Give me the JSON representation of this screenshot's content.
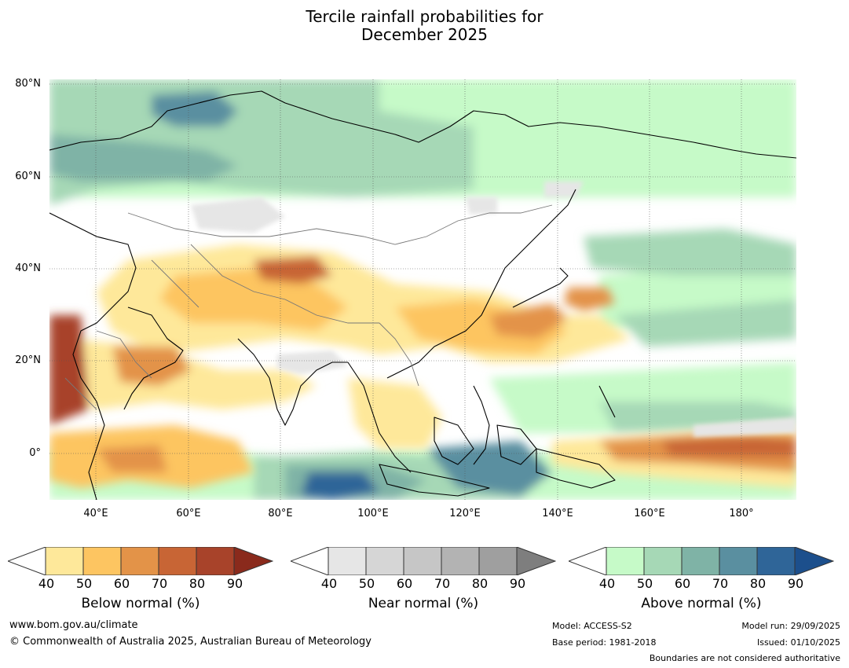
{
  "title": {
    "line1": "Tercile rainfall probabilities for",
    "line2": "December 2025"
  },
  "map": {
    "lat_labels": [
      "80°N",
      "60°N",
      "40°N",
      "20°N",
      "0°"
    ],
    "lon_labels": [
      "40°E",
      "60°E",
      "80°E",
      "100°E",
      "120°E",
      "140°E",
      "160°E",
      "180°"
    ],
    "lat_range": [
      -10,
      81
    ],
    "lon_range": [
      30,
      192
    ],
    "gridlines": true
  },
  "colorbars": [
    {
      "title": "Below normal (%)",
      "ticks": [
        "40",
        "50",
        "60",
        "70",
        "80",
        "90"
      ],
      "colors": [
        "#ffffff",
        "#fee89a",
        "#fdc561",
        "#e39348",
        "#c86535",
        "#a8432a",
        "#8a2a1c"
      ]
    },
    {
      "title": "Near normal (%)",
      "ticks": [
        "40",
        "50",
        "60",
        "70",
        "80",
        "90"
      ],
      "colors": [
        "#ffffff",
        "#e6e6e6",
        "#d6d6d6",
        "#c6c6c6",
        "#b3b3b3",
        "#9f9f9f",
        "#7e7e7e"
      ]
    },
    {
      "title": "Above normal (%)",
      "ticks": [
        "40",
        "50",
        "60",
        "70",
        "80",
        "90"
      ],
      "colors": [
        "#ffffff",
        "#c6fac8",
        "#a6d8b6",
        "#7fb3a6",
        "#5a8fa0",
        "#2f6598",
        "#1c4f8c"
      ]
    }
  ],
  "footer": {
    "website": "www.bom.gov.au/climate",
    "copyright": "© Commonwealth of Australia 2025, Australian Bureau of Meteorology",
    "model": "Model: ACCESS-S2",
    "base_period": "Base period: 1981-2018",
    "model_run": "Model run: 29/09/2025",
    "issued": "Issued: 01/10/2025",
    "disclaimer": "Boundaries are not considered authoritative"
  }
}
